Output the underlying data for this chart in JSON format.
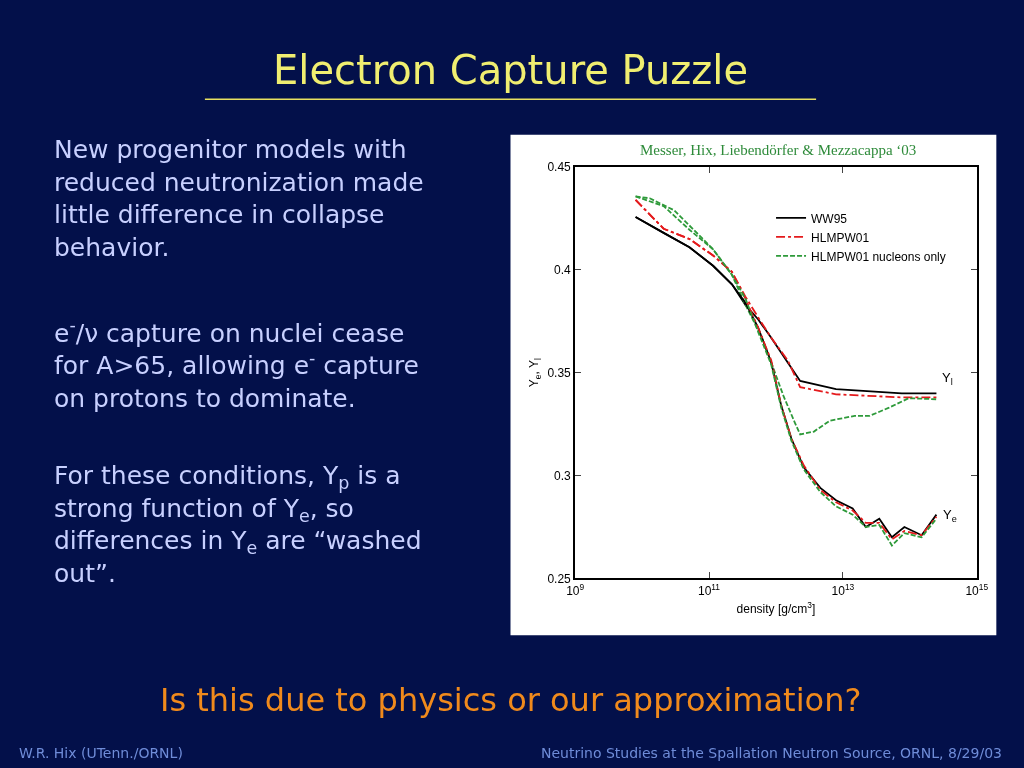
{
  "chart_data": {
    "type": "line",
    "title": "Electron Capture Puzzle",
    "xlabel": "density [g/cm$^{3}$]",
    "ylabel": "Y$_{e}$, Y$_{l}$",
    "log": "x",
    "xlim": [
      1000000000.0,
      1000000000000000.0
    ],
    "ylim": [
      0.25,
      0.45
    ],
    "xticks": [
      {
        "value": 1000000000.0,
        "label": "10$^{9}$"
      },
      {
        "value": 100000000000.0,
        "label": "10$^{11}$"
      },
      {
        "value": 10000000000000.0,
        "label": "10$^{13}$"
      },
      {
        "value": 1000000000000000.0,
        "label": "10$^{15}$"
      }
    ],
    "yticks": [
      {
        "value": 0.25,
        "label": "0.25"
      },
      0.3,
      0.35,
      0.4,
      0.45
    ],
    "legend": "top right",
    "marker": "none",
    "series": [
      {
        "name": "WW95",
        "color": "#000000",
        "line_style": "solid",
        "x": [
          8000000000.0,
          21000000000.0,
          51000000000.0,
          115000000000.0,
          220000000000.0,
          350000000000.0,
          540000000000.0,
          850000000000.0,
          1500000000000.0,
          2300000000000.0,
          7900000000000.0,
          76000000000000.0,
          250000000000000.0
        ],
        "values": [
          0.4257,
          0.418,
          0.411,
          0.402,
          0.393,
          0.383,
          0.376,
          0.367,
          0.355,
          0.346,
          0.342,
          0.34,
          0.34
        ]
      },
      {
        "name": "HLMPW01",
        "color": "#e41a1c",
        "line_style": "dashdot",
        "x": [
          8000000000.0,
          21000000000.0,
          51000000000.0,
          115000000000.0,
          220000000000.0,
          350000000000.0,
          540000000000.0,
          850000000000.0,
          1500000000000.0,
          2300000000000.0,
          7900000000000.0,
          76000000000000.0,
          250000000000000.0
        ],
        "values": [
          0.434,
          0.42,
          0.415,
          0.407,
          0.399,
          0.387,
          0.377,
          0.367,
          0.356,
          0.343,
          0.3395,
          0.338,
          0.338
        ]
      },
      {
        "name": "HLMPW01 nucleons only",
        "color": "#2e9a3a",
        "line_style": "dashed",
        "x": [
          8000000000.0,
          13000000000.0,
          30000000000.0,
          59000000000.0,
          115000000000.0,
          220000000000.0,
          350000000000.0,
          620000000000.0,
          850000000000.0,
          1300000000000.0,
          1900000000000.0,
          2300000000000.0,
          3700000000000.0,
          6400000000000.0,
          15000000000000.0,
          25000000000000.0,
          49000000000000.0,
          96000000000000.0,
          250000000000000.0
        ],
        "values": [
          0.4357,
          0.4348,
          0.429,
          0.4195,
          0.41,
          0.3976,
          0.383,
          0.367,
          0.355,
          0.3386,
          0.326,
          0.32,
          0.3214,
          0.3267,
          0.329,
          0.329,
          0.333,
          0.3376,
          0.3371
        ]
      },
      {
        "color": "#000000",
        "line_style": "solid",
        "x": [
          8000000000.0,
          21000000000.0,
          51000000000.0,
          115000000000.0,
          220000000000.0,
          350000000000.0,
          540000000000.0,
          850000000000.0,
          1200000000000.0,
          1700000000000.0,
          2600000000000.0,
          4600000000000.0,
          7900000000000.0,
          14000000000000.0,
          22000000000000.0,
          35000000000000.0,
          54000000000000.0,
          83000000000000.0,
          150000000000000.0,
          250000000000000.0
        ],
        "values": [
          0.4257,
          0.418,
          0.411,
          0.402,
          0.393,
          0.384,
          0.372,
          0.355,
          0.334,
          0.318,
          0.304,
          0.294,
          0.288,
          0.284,
          0.275,
          0.279,
          0.27,
          0.275,
          0.271,
          0.281
        ]
      },
      {
        "color": "#e41a1c",
        "line_style": "dashdot",
        "x": [
          8000000000.0,
          21000000000.0,
          51000000000.0,
          115000000000.0,
          220000000000.0,
          350000000000.0,
          540000000000.0,
          850000000000.0,
          1200000000000.0,
          1700000000000.0,
          2600000000000.0,
          4600000000000.0,
          7900000000000.0,
          14000000000000.0,
          22000000000000.0,
          35000000000000.0,
          54000000000000.0,
          83000000000000.0,
          150000000000000.0,
          250000000000000.0
        ],
        "values": [
          0.434,
          0.42,
          0.415,
          0.407,
          0.399,
          0.386,
          0.372,
          0.356,
          0.334,
          0.318,
          0.305,
          0.293,
          0.287,
          0.283,
          0.277,
          0.277,
          0.269,
          0.273,
          0.271,
          0.28
        ]
      },
      {
        "color": "#2e9a3a",
        "line_style": "dashed",
        "x": [
          8000000000.0,
          21000000000.0,
          51000000000.0,
          115000000000.0,
          220000000000.0,
          350000000000.0,
          540000000000.0,
          850000000000.0,
          1200000000000.0,
          1700000000000.0,
          2600000000000.0,
          4600000000000.0,
          7900000000000.0,
          14000000000000.0,
          22000000000000.0,
          35000000000000.0,
          54000000000000.0,
          83000000000000.0,
          150000000000000.0,
          250000000000000.0
        ],
        "values": [
          0.4357,
          0.431,
          0.4195,
          0.41,
          0.3976,
          0.386,
          0.37,
          0.354,
          0.333,
          0.317,
          0.303,
          0.292,
          0.285,
          0.281,
          0.275,
          0.276,
          0.266,
          0.272,
          0.27,
          0.279
        ]
      }
    ],
    "annotations": [
      "Y$_{l}$",
      "Y$_{e}$",
      "Messer, Hix, Liebendörfer & Mezzacappa ‘03",
      "New progenitor models with\nreduced neutronization made\nlittle difference in collapse\nbehavior.",
      "e$^{-}$/ν capture on nuclei cease\nfor A>65, allowing e$^{-}$ capture\non protons to dominate.",
      "For these conditions, Y$_{p}$ is a\nstrong function of Y$_{e}$, so\ndifferences in Y$_{e}$ are “washed\nout”.",
      "Is this due to physics or our approximation?",
      "W.R. Hix (UTenn./ORNL)",
      "Neutrino Studies at the Spallation Neutron Source, ORNL, 8/29/03"
    ]
  }
}
